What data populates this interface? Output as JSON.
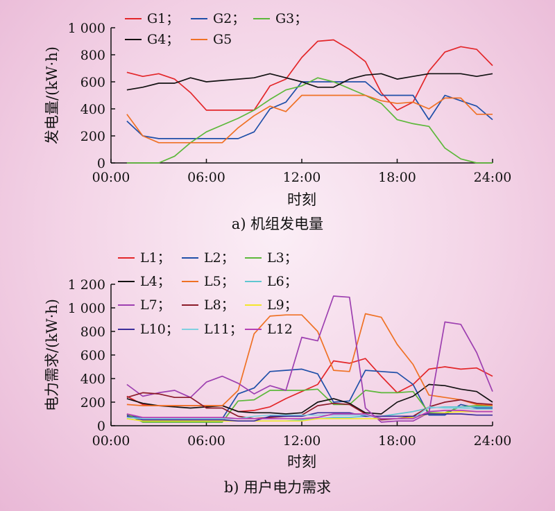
{
  "chart_data": [
    {
      "type": "line",
      "caption": "a) 机组发电量",
      "xlabel": "时刻",
      "ylabel": "发电量/(kW·h)",
      "x_ticks": [
        "00:00",
        "06:00",
        "12:00",
        "18:00",
        "24:00"
      ],
      "xlim": [
        0,
        24
      ],
      "ylim": [
        0,
        1000
      ],
      "y_ticks": [
        "0",
        "200",
        "400",
        "600",
        "800",
        "1 000"
      ],
      "y_tick_values": [
        0,
        200,
        400,
        600,
        800,
        1000
      ],
      "grid": false,
      "legend_position": "top-left",
      "x": [
        1,
        2,
        3,
        4,
        5,
        6,
        7,
        8,
        9,
        10,
        11,
        12,
        13,
        14,
        15,
        16,
        17,
        18,
        19,
        20,
        21,
        22,
        23,
        24
      ],
      "series": [
        {
          "name": "G1；",
          "color": "#e32629",
          "values": [
            670,
            640,
            660,
            620,
            520,
            390,
            390,
            390,
            390,
            570,
            620,
            780,
            900,
            910,
            840,
            750,
            520,
            390,
            450,
            680,
            820,
            860,
            840,
            720
          ]
        },
        {
          "name": "G2；",
          "color": "#1f4fa8",
          "values": [
            310,
            200,
            180,
            180,
            180,
            180,
            180,
            180,
            230,
            400,
            450,
            600,
            600,
            600,
            600,
            600,
            500,
            500,
            500,
            320,
            500,
            460,
            420,
            320
          ]
        },
        {
          "name": "G3；",
          "color": "#5cb83a",
          "values": [
            0,
            0,
            0,
            50,
            150,
            230,
            280,
            330,
            390,
            470,
            540,
            570,
            630,
            600,
            550,
            500,
            440,
            320,
            290,
            270,
            110,
            30,
            0,
            0
          ]
        },
        {
          "name": "G4；",
          "color": "#111111",
          "values": [
            540,
            560,
            590,
            590,
            630,
            600,
            610,
            620,
            630,
            660,
            630,
            600,
            560,
            560,
            620,
            650,
            660,
            620,
            640,
            660,
            660,
            660,
            640,
            660
          ]
        },
        {
          "name": "G5",
          "color": "#ef7124",
          "values": [
            360,
            200,
            150,
            150,
            150,
            150,
            150,
            260,
            350,
            420,
            380,
            500,
            500,
            500,
            500,
            500,
            460,
            440,
            450,
            400,
            480,
            480,
            360,
            360
          ]
        }
      ]
    },
    {
      "type": "line",
      "caption": "b) 用户电力需求",
      "xlabel": "时刻",
      "ylabel": "电力需求/(kW·h)",
      "x_ticks": [
        "00:00",
        "06:00",
        "12:00",
        "18:00",
        "24:00"
      ],
      "xlim": [
        0,
        24
      ],
      "ylim": [
        0,
        1200
      ],
      "y_ticks": [
        "0",
        "200",
        "400",
        "600",
        "800",
        "1 000",
        "1 200"
      ],
      "y_tick_values": [
        0,
        200,
        400,
        600,
        800,
        1000,
        1200
      ],
      "grid": false,
      "legend_position": "top-left",
      "x": [
        1,
        2,
        3,
        4,
        5,
        6,
        7,
        8,
        9,
        10,
        11,
        12,
        13,
        14,
        15,
        16,
        17,
        18,
        19,
        20,
        21,
        22,
        23,
        24
      ],
      "series": [
        {
          "name": "L1；",
          "color": "#e32629",
          "values": [
            250,
            180,
            170,
            170,
            170,
            170,
            170,
            120,
            130,
            160,
            230,
            290,
            350,
            550,
            530,
            570,
            420,
            280,
            350,
            480,
            500,
            480,
            490,
            420
          ]
        },
        {
          "name": "L2；",
          "color": "#1f4fa8",
          "values": [
            90,
            60,
            60,
            60,
            60,
            60,
            60,
            270,
            320,
            460,
            470,
            480,
            440,
            200,
            210,
            470,
            460,
            450,
            350,
            90,
            90,
            180,
            150,
            150
          ]
        },
        {
          "name": "L3；",
          "color": "#5cb83a",
          "values": [
            100,
            30,
            30,
            30,
            30,
            30,
            30,
            210,
            220,
            300,
            300,
            300,
            310,
            180,
            180,
            300,
            280,
            280,
            290,
            110,
            110,
            160,
            170,
            170
          ]
        },
        {
          "name": "L4；",
          "color": "#111111",
          "values": [
            230,
            190,
            170,
            160,
            150,
            160,
            170,
            120,
            110,
            110,
            100,
            110,
            200,
            230,
            190,
            110,
            100,
            200,
            250,
            350,
            340,
            310,
            290,
            200
          ]
        },
        {
          "name": "L5；",
          "color": "#ef7124",
          "values": [
            180,
            170,
            170,
            170,
            170,
            170,
            170,
            300,
            780,
            930,
            940,
            940,
            800,
            470,
            460,
            950,
            920,
            690,
            520,
            260,
            240,
            220,
            180,
            170
          ]
        },
        {
          "name": "L6；",
          "color": "#5fc6d0",
          "values": [
            60,
            40,
            40,
            40,
            40,
            40,
            40,
            40,
            40,
            40,
            40,
            50,
            60,
            70,
            70,
            80,
            80,
            100,
            120,
            150,
            160,
            160,
            160,
            160
          ]
        },
        {
          "name": "L7；",
          "color": "#9d3fb0",
          "values": [
            350,
            250,
            280,
            300,
            240,
            370,
            420,
            360,
            270,
            340,
            300,
            750,
            720,
            1100,
            1090,
            150,
            30,
            40,
            40,
            110,
            880,
            860,
            620,
            290
          ]
        },
        {
          "name": "L8；",
          "color": "#8b1a28",
          "values": [
            240,
            280,
            270,
            240,
            240,
            150,
            150,
            80,
            60,
            70,
            80,
            90,
            170,
            190,
            180,
            100,
            50,
            60,
            80,
            160,
            200,
            220,
            190,
            180
          ]
        },
        {
          "name": "L9；",
          "color": "#f3e62a",
          "values": [
            60,
            40,
            40,
            40,
            40,
            40,
            40,
            40,
            40,
            40,
            40,
            40,
            60,
            60,
            60,
            60,
            60,
            60,
            70,
            100,
            110,
            120,
            120,
            120
          ]
        },
        {
          "name": "L10；",
          "color": "#3b2d9a",
          "values": [
            80,
            50,
            50,
            50,
            50,
            50,
            50,
            40,
            40,
            80,
            80,
            80,
            110,
            110,
            110,
            80,
            80,
            80,
            80,
            100,
            100,
            100,
            90,
            90
          ]
        },
        {
          "name": "L11；",
          "color": "#80cfe0",
          "values": [
            70,
            60,
            60,
            60,
            60,
            60,
            60,
            60,
            80,
            90,
            90,
            90,
            90,
            90,
            90,
            90,
            60,
            60,
            60,
            160,
            150,
            150,
            140,
            140
          ]
        },
        {
          "name": "L12",
          "color": "#b53fb3",
          "values": [
            100,
            70,
            70,
            70,
            70,
            70,
            70,
            60,
            60,
            60,
            60,
            60,
            70,
            100,
            100,
            100,
            60,
            60,
            60,
            120,
            130,
            130,
            120,
            120
          ]
        }
      ]
    }
  ]
}
